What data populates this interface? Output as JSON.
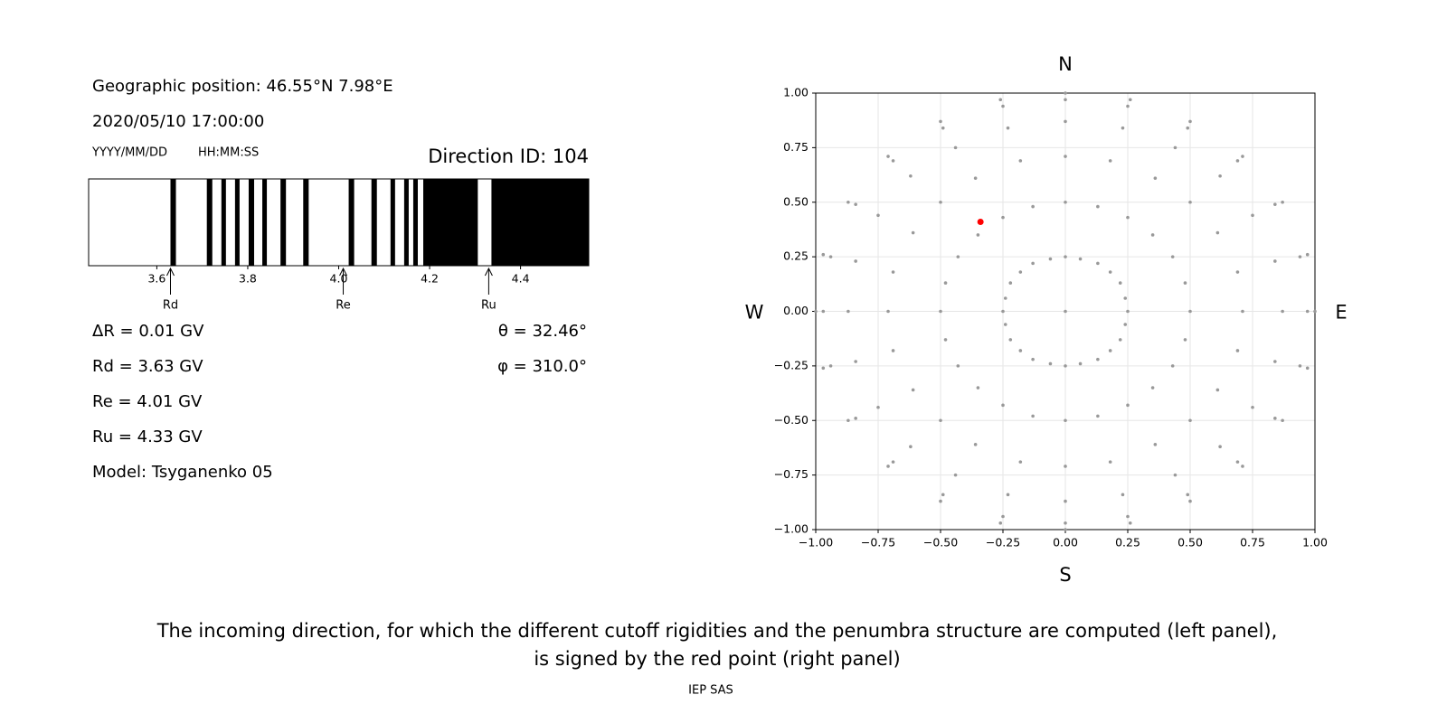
{
  "info": {
    "position": "Geographic position: 46.55°N 7.98°E",
    "datetime": "2020/05/10 17:00:00",
    "date_format": "YYYY/MM/DD",
    "time_format": "HH:MM:SS",
    "delta_r": "ΔR = 0.01 GV",
    "rd": "Rd = 3.63 GV",
    "re": "Re = 4.01 GV",
    "ru": "Ru = 4.33 GV",
    "model": "Model: Tsyganenko 05",
    "theta": "θ = 32.46°",
    "phi": "φ = 310.0°"
  },
  "caption": [
    "The incoming direction, for which the different cutoff rigidities and the penumbra structure are computed (left panel),",
    "is signed by the red point (right panel)"
  ],
  "footer": "IEP SAS",
  "chart_data": [
    {
      "type": "penumbra",
      "title": "Direction ID: 104",
      "color": "#000000",
      "xlim": [
        3.45,
        4.55
      ],
      "xticks": [
        3.6,
        3.8,
        {
          "value": 4.0,
          "label": "4.0"
        },
        4.2,
        4.4
      ],
      "intervals": [
        [
          3.63,
          3.642
        ],
        [
          3.71,
          3.722
        ],
        [
          3.742,
          3.752
        ],
        [
          3.772,
          3.782
        ],
        [
          3.802,
          3.814
        ],
        [
          3.832,
          3.842
        ],
        [
          3.872,
          3.884
        ],
        [
          3.922,
          3.934
        ],
        [
          4.022,
          4.034
        ],
        [
          4.072,
          4.084
        ],
        [
          4.114,
          4.124
        ],
        [
          4.144,
          4.154
        ],
        [
          4.164,
          4.174
        ],
        [
          4.186,
          4.306
        ],
        [
          4.336,
          4.55
        ]
      ],
      "markers": [
        {
          "label": "Rd",
          "value": 3.63
        },
        {
          "label": "Re",
          "value": 4.01
        },
        {
          "label": "Ru",
          "value": 4.33
        }
      ]
    },
    {
      "type": "scatter",
      "grid": true,
      "xlim": [
        -1,
        1
      ],
      "ylim": [
        -1,
        1
      ],
      "xticks": [
        {
          "value": -1,
          "label": "−1.00"
        },
        {
          "value": -0.75,
          "label": "−0.75"
        },
        {
          "value": -0.5,
          "label": "−0.50"
        },
        {
          "value": -0.25,
          "label": "−0.25"
        },
        {
          "value": 0,
          "label": "0.00"
        },
        {
          "value": 0.25,
          "label": "0.25"
        },
        {
          "value": 0.5,
          "label": "0.50"
        },
        {
          "value": 0.75,
          "label": "0.75"
        },
        {
          "value": 1,
          "label": "1.00"
        }
      ],
      "yticks": [
        {
          "value": -1,
          "label": "−1.00"
        },
        {
          "value": -0.75,
          "label": "−0.75"
        },
        {
          "value": -0.5,
          "label": "−0.50"
        },
        {
          "value": -0.25,
          "label": "−0.25"
        },
        {
          "value": 0,
          "label": "0.00"
        },
        {
          "value": 0.25,
          "label": "0.25"
        },
        {
          "value": 0.5,
          "label": "0.50"
        },
        {
          "value": 0.75,
          "label": "0.75"
        },
        {
          "value": 1,
          "label": "1.00"
        }
      ],
      "compass": {
        "top": "N",
        "bottom": "S",
        "left": "W",
        "right": "E"
      },
      "series": [
        {
          "color": "#999999",
          "x": [
            0,
            0,
            0.06,
            0.13,
            0.18,
            0.22,
            0.24,
            0.25,
            0.24,
            0.22,
            0.18,
            0.13,
            0.06,
            0,
            -0.06,
            -0.13,
            -0.18,
            -0.22,
            -0.24,
            -0.25,
            -0.24,
            -0.22,
            -0.18,
            -0.13,
            -0.06,
            0,
            0.13,
            0.25,
            0.35,
            0.43,
            0.48,
            0.5,
            0.48,
            0.43,
            0.35,
            0.25,
            0.13,
            0,
            -0.13,
            -0.25,
            -0.35,
            -0.43,
            -0.48,
            -0.5,
            -0.48,
            -0.43,
            -0.35,
            -0.25,
            -0.13,
            0,
            0.18,
            0.36,
            0.5,
            0.61,
            0.69,
            0.71,
            0.69,
            0.61,
            0.5,
            0.36,
            0.18,
            0,
            -0.18,
            -0.36,
            -0.5,
            -0.61,
            -0.69,
            -0.71,
            -0.69,
            -0.61,
            -0.5,
            -0.36,
            -0.18,
            0,
            0.23,
            0.44,
            0.62,
            0.75,
            0.84,
            0.87,
            0.84,
            0.75,
            0.62,
            0.44,
            0.23,
            0,
            -0.23,
            -0.44,
            -0.62,
            -0.75,
            -0.84,
            -0.87,
            -0.84,
            -0.75,
            -0.62,
            -0.44,
            -0.23,
            0,
            0.25,
            0.49,
            0.69,
            0.84,
            0.94,
            0.97,
            0.94,
            0.84,
            0.69,
            0.49,
            0.25,
            0,
            -0.25,
            -0.49,
            -0.69,
            -0.84,
            -0.94,
            -0.97,
            -0.94,
            -0.84,
            -0.69,
            -0.49,
            -0.25,
            0,
            0.26,
            0.5,
            0.71,
            0.87,
            0.97,
            1,
            0.97,
            0.87,
            0.71,
            0.5,
            0.26,
            0,
            -0.26,
            -0.5,
            -0.71,
            -0.87,
            -0.97,
            -1,
            -0.97,
            -0.87,
            -0.71,
            -0.5,
            -0.26
          ],
          "y": [
            0,
            0.25,
            0.24,
            0.22,
            0.18,
            0.13,
            0.06,
            0,
            -0.06,
            -0.13,
            -0.18,
            -0.22,
            -0.24,
            -0.25,
            -0.24,
            -0.22,
            -0.18,
            -0.13,
            -0.06,
            0,
            0.06,
            0.13,
            0.18,
            0.22,
            0.24,
            0.5,
            0.48,
            0.43,
            0.35,
            0.25,
            0.13,
            0,
            -0.13,
            -0.25,
            -0.35,
            -0.43,
            -0.48,
            -0.5,
            -0.48,
            -0.43,
            -0.35,
            -0.25,
            -0.13,
            0,
            0.13,
            0.25,
            0.35,
            0.43,
            0.48,
            0.71,
            0.69,
            0.61,
            0.5,
            0.36,
            0.18,
            0,
            -0.18,
            -0.36,
            -0.5,
            -0.61,
            -0.69,
            -0.71,
            -0.69,
            -0.61,
            -0.5,
            -0.36,
            -0.18,
            0,
            0.18,
            0.36,
            0.5,
            0.61,
            0.69,
            0.87,
            0.84,
            0.75,
            0.62,
            0.44,
            0.23,
            0,
            -0.23,
            -0.44,
            -0.62,
            -0.75,
            -0.84,
            -0.87,
            -0.84,
            -0.75,
            -0.62,
            -0.44,
            -0.23,
            0,
            0.23,
            0.44,
            0.62,
            0.75,
            0.84,
            0.97,
            0.94,
            0.84,
            0.69,
            0.49,
            0.25,
            0,
            -0.25,
            -0.49,
            -0.69,
            -0.84,
            -0.94,
            -0.97,
            -0.94,
            -0.84,
            -0.69,
            -0.49,
            -0.25,
            0,
            0.25,
            0.49,
            0.69,
            0.84,
            0.94,
            1,
            0.97,
            0.87,
            0.71,
            0.5,
            0.26,
            0,
            -0.26,
            -0.5,
            -0.71,
            -0.87,
            -0.97,
            -1,
            -0.97,
            -0.87,
            -0.71,
            -0.5,
            -0.26,
            0,
            0.26,
            0.5,
            0.71,
            0.87,
            0.97
          ]
        },
        {
          "color": "#ff0000",
          "x": [
            -0.34
          ],
          "y": [
            0.41
          ]
        }
      ]
    }
  ]
}
